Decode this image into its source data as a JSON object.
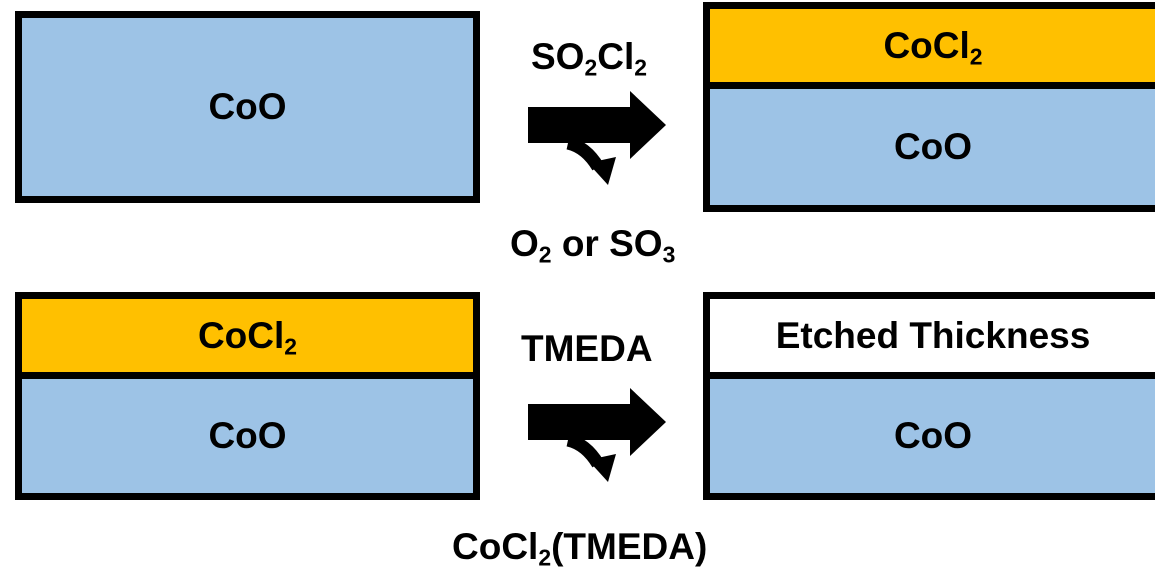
{
  "colors": {
    "coo": "#9DC3E6",
    "cocl2": "#FFC000",
    "etched": "#FFFFFF",
    "border": "#000000",
    "arrow": "#000000"
  },
  "row1": {
    "left_box": {
      "layer": "CoO"
    },
    "reaction": {
      "reagent": {
        "p1": "SO",
        "s1": "2",
        "p2": "Cl",
        "s2": "2"
      },
      "byproduct": {
        "p1": "O",
        "s1": "2",
        "p2": " or SO",
        "s2": "3"
      }
    },
    "right_box": {
      "top_layer": {
        "p1": "CoCl",
        "s1": "2"
      },
      "bottom_layer": "CoO"
    }
  },
  "row2": {
    "left_box": {
      "top_layer": {
        "p1": "CoCl",
        "s1": "2"
      },
      "bottom_layer": "CoO"
    },
    "reaction": {
      "reagent": "TMEDA",
      "byproduct": {
        "p1": "CoCl",
        "s1": "2",
        "p2": "(TMEDA)"
      }
    },
    "right_box": {
      "top_layer": "Etched Thickness",
      "bottom_layer": "CoO"
    }
  }
}
